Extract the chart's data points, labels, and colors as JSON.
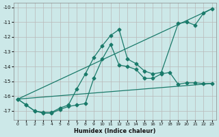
{
  "xlabel": "Humidex (Indice chaleur)",
  "bg_color": "#cce8e8",
  "grid_color": "#b8b8b8",
  "line_color": "#1a7a6a",
  "xlim": [
    -0.5,
    23.5
  ],
  "ylim": [
    -17.6,
    -9.7
  ],
  "yticks": [
    -17,
    -16,
    -15,
    -14,
    -13,
    -12,
    -11,
    -10
  ],
  "xticks": [
    0,
    1,
    2,
    3,
    4,
    5,
    6,
    7,
    8,
    9,
    10,
    11,
    12,
    13,
    14,
    15,
    16,
    17,
    18,
    19,
    20,
    21,
    22,
    23
  ],
  "line1_x": [
    0,
    1,
    2,
    3,
    4,
    5,
    6,
    7,
    8,
    9,
    10,
    11,
    12,
    13,
    14,
    15,
    16,
    17,
    19,
    20,
    21,
    22,
    23
  ],
  "line1_y": [
    -16.2,
    -16.6,
    -17.0,
    -17.1,
    -17.1,
    -16.8,
    -16.6,
    -15.5,
    -14.5,
    -13.4,
    -12.6,
    -11.9,
    -11.5,
    -13.5,
    -13.8,
    -14.3,
    -14.5,
    -14.4,
    -11.1,
    -11.0,
    -11.2,
    -10.4,
    -10.1
  ],
  "line2_x": [
    0,
    1,
    2,
    3,
    4,
    5,
    6,
    7,
    8,
    9,
    10,
    11,
    12,
    13,
    14,
    15,
    16,
    17,
    18,
    19,
    20,
    21,
    22,
    23
  ],
  "line2_y": [
    -16.2,
    -16.6,
    -17.0,
    -17.15,
    -17.15,
    -16.9,
    -16.7,
    -16.6,
    -16.5,
    -14.8,
    -13.5,
    -12.5,
    -13.9,
    -14.0,
    -14.2,
    -14.8,
    -14.8,
    -14.5,
    -14.4,
    -15.2,
    -15.1,
    -15.1,
    -15.15,
    -15.15
  ],
  "line3_x": [
    0,
    23
  ],
  "line3_y": [
    -16.2,
    -10.1
  ],
  "line4_x": [
    0,
    23
  ],
  "line4_y": [
    -16.2,
    -15.15
  ]
}
